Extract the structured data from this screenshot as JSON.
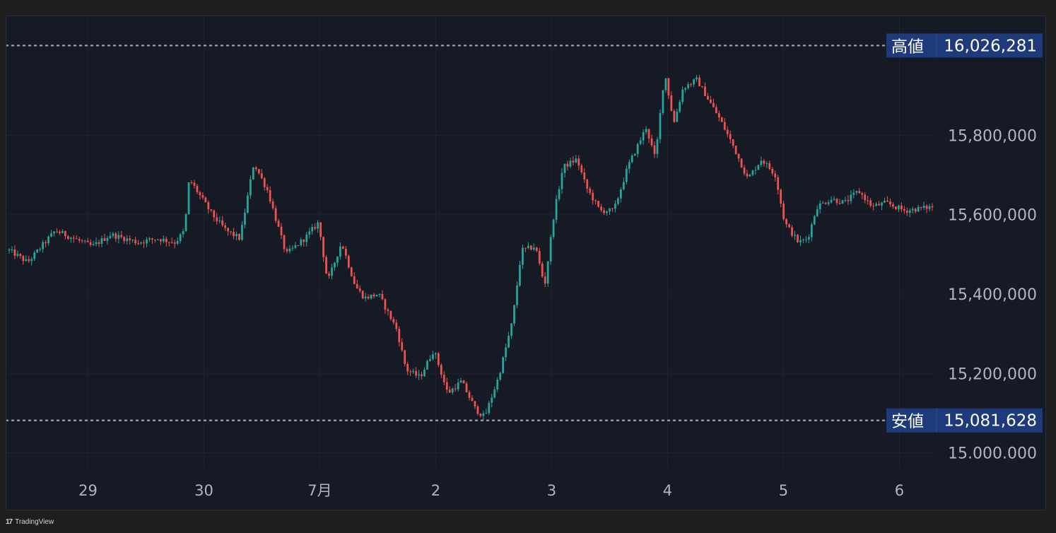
{
  "brand": {
    "name": "TradingView",
    "icon": "tradingview-logo-icon"
  },
  "markers": {
    "high": {
      "label": "高値",
      "value": "16,026,281"
    },
    "low": {
      "label": "安値",
      "value": "15,081,628"
    }
  },
  "colors": {
    "background": "#161a25",
    "up": "#26a69a",
    "down": "#ef5350",
    "label_bg": "#1e3a7a",
    "grid": "#1f2330"
  },
  "chart_data": {
    "type": "candlestick",
    "y_ticks": [
      "15,800,000",
      "15,600,000",
      "15,400,000",
      "15,200,000",
      "15.000.000"
    ],
    "y_tick_values": [
      15800000,
      15600000,
      15400000,
      15200000,
      15000000
    ],
    "ylim": [
      14960000,
      16100000
    ],
    "x_ticks": [
      "29",
      "30",
      "7月",
      "2",
      "3",
      "4",
      "5",
      "6"
    ],
    "grid": true,
    "price_path": [
      [
        0.0,
        15510000
      ],
      [
        0.02,
        15480000
      ],
      [
        0.05,
        15560000
      ],
      [
        0.07,
        15540000
      ],
      [
        0.09,
        15520000
      ],
      [
        0.11,
        15550000
      ],
      [
        0.14,
        15530000
      ],
      [
        0.16,
        15540000
      ],
      [
        0.18,
        15530000
      ],
      [
        0.19,
        15560000
      ],
      [
        0.195,
        15690000
      ],
      [
        0.22,
        15600000
      ],
      [
        0.235,
        15560000
      ],
      [
        0.25,
        15540000
      ],
      [
        0.265,
        15730000
      ],
      [
        0.28,
        15660000
      ],
      [
        0.3,
        15500000
      ],
      [
        0.32,
        15540000
      ],
      [
        0.335,
        15580000
      ],
      [
        0.345,
        15430000
      ],
      [
        0.36,
        15530000
      ],
      [
        0.375,
        15420000
      ],
      [
        0.385,
        15390000
      ],
      [
        0.4,
        15400000
      ],
      [
        0.42,
        15310000
      ],
      [
        0.43,
        15210000
      ],
      [
        0.445,
        15190000
      ],
      [
        0.46,
        15260000
      ],
      [
        0.475,
        15150000
      ],
      [
        0.49,
        15180000
      ],
      [
        0.505,
        15110000
      ],
      [
        0.515,
        15090000
      ],
      [
        0.53,
        15190000
      ],
      [
        0.545,
        15330000
      ],
      [
        0.555,
        15510000
      ],
      [
        0.57,
        15520000
      ],
      [
        0.58,
        15420000
      ],
      [
        0.59,
        15600000
      ],
      [
        0.6,
        15720000
      ],
      [
        0.615,
        15740000
      ],
      [
        0.625,
        15670000
      ],
      [
        0.64,
        15610000
      ],
      [
        0.655,
        15610000
      ],
      [
        0.67,
        15720000
      ],
      [
        0.69,
        15820000
      ],
      [
        0.7,
        15740000
      ],
      [
        0.71,
        15960000
      ],
      [
        0.72,
        15830000
      ],
      [
        0.73,
        15920000
      ],
      [
        0.745,
        15940000
      ],
      [
        0.76,
        15880000
      ],
      [
        0.77,
        15840000
      ],
      [
        0.785,
        15770000
      ],
      [
        0.8,
        15690000
      ],
      [
        0.815,
        15740000
      ],
      [
        0.83,
        15700000
      ],
      [
        0.84,
        15580000
      ],
      [
        0.855,
        15530000
      ],
      [
        0.865,
        15540000
      ],
      [
        0.875,
        15620000
      ],
      [
        0.89,
        15640000
      ],
      [
        0.905,
        15630000
      ],
      [
        0.92,
        15660000
      ],
      [
        0.935,
        15620000
      ],
      [
        0.95,
        15630000
      ],
      [
        0.97,
        15610000
      ],
      [
        1.0,
        15620000
      ]
    ]
  }
}
